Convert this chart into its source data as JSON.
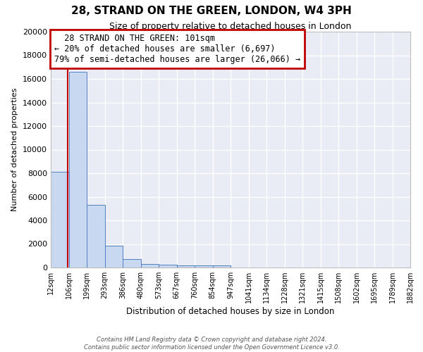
{
  "title": "28, STRAND ON THE GREEN, LONDON, W4 3PH",
  "subtitle": "Size of property relative to detached houses in London",
  "xlabel": "Distribution of detached houses by size in London",
  "ylabel": "Number of detached properties",
  "footer_line1": "Contains HM Land Registry data © Crown copyright and database right 2024.",
  "footer_line2": "Contains public sector information licensed under the Open Government Licence v3.0.",
  "annotation_line1": "28 STRAND ON THE GREEN: 101sqm",
  "annotation_line2": "← 20% of detached houses are smaller (6,697)",
  "annotation_line3": "79% of semi-detached houses are larger (26,066) →",
  "property_size": 101,
  "bin_edges": [
    12,
    106,
    199,
    293,
    386,
    480,
    573,
    667,
    760,
    854,
    947,
    1041,
    1134,
    1228,
    1321,
    1415,
    1508,
    1602,
    1695,
    1789,
    1882
  ],
  "bar_heights": [
    8100,
    16600,
    5300,
    1850,
    700,
    320,
    230,
    190,
    180,
    150,
    0,
    0,
    0,
    0,
    0,
    0,
    0,
    0,
    0,
    0
  ],
  "bar_color": "#c8d8f0",
  "bar_edge_color": "#5080c0",
  "red_line_color": "#c00000",
  "annotation_box_color": "#c00000",
  "background_color": "#eaecf5",
  "grid_color": "#ffffff",
  "ylim": [
    0,
    20000
  ],
  "yticks": [
    0,
    2000,
    4000,
    6000,
    8000,
    10000,
    12000,
    14000,
    16000,
    18000,
    20000
  ]
}
